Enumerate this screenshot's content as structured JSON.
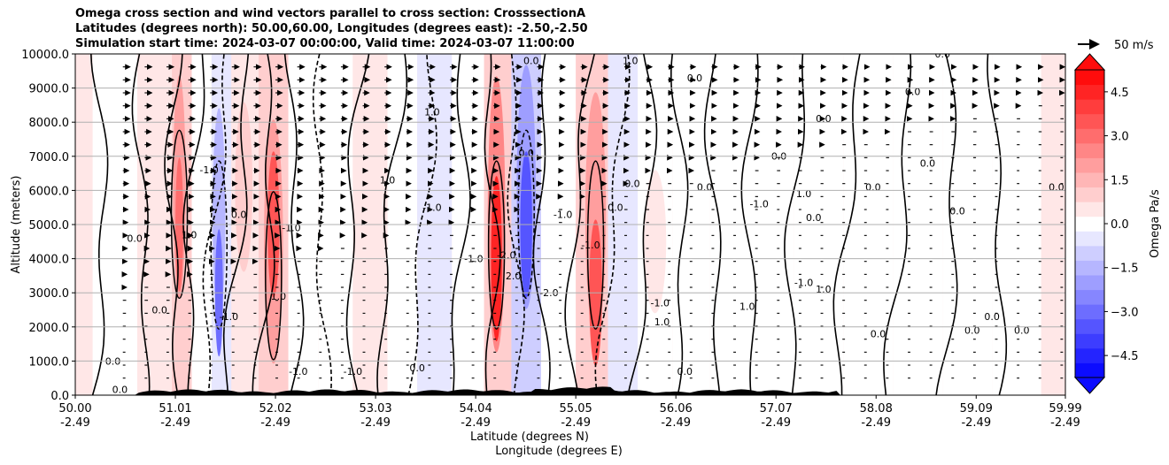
{
  "header": {
    "line1": "Omega cross section and wind vectors parallel to cross section: CrosssectionA",
    "line2": "Latitudes (degrees north): 50.00,60.00, Longitudes (degrees east): -2.50,-2.50",
    "line3": "Simulation start time: 2024-03-07 00:00:00, Valid time: 2024-03-07 11:00:00"
  },
  "chart_data": {
    "type": "contour",
    "title": "Omega cross section and wind vectors parallel to cross section: CrosssectionA",
    "ylabel": "Altitude (meters)",
    "xlabel_lat": "Latitude (degrees N)",
    "xlabel_lon": "Longitude (degrees E)",
    "ylim": [
      0,
      10000
    ],
    "xlim": [
      50.0,
      59.99
    ],
    "yticks": [
      "0.0",
      "1000.0",
      "2000.0",
      "3000.0",
      "4000.0",
      "5000.0",
      "6000.0",
      "7000.0",
      "8000.0",
      "9000.0",
      "10000.0"
    ],
    "ytick_values": [
      0,
      1000,
      2000,
      3000,
      4000,
      5000,
      6000,
      7000,
      8000,
      9000,
      10000
    ],
    "xtick_values": [
      50.0,
      51.01,
      52.02,
      53.03,
      54.04,
      55.05,
      56.06,
      57.07,
      58.08,
      59.09,
      59.99
    ],
    "xticks_lat": [
      "50.00",
      "51.01",
      "52.02",
      "53.03",
      "54.04",
      "55.05",
      "56.06",
      "57.07",
      "58.08",
      "59.09",
      "59.99"
    ],
    "xticks_lon": [
      "-2.49",
      "-2.49",
      "-2.49",
      "-2.49",
      "-2.49",
      "-2.49",
      "-2.49",
      "-2.49",
      "-2.49",
      "-2.49",
      "-2.49"
    ],
    "colorbar": {
      "label": "Omega Pa/s",
      "ticks": [
        "4.5",
        "3.0",
        "1.5",
        "0.0",
        "−1.5",
        "−3.0",
        "−4.5"
      ],
      "tick_values": [
        4.5,
        3.0,
        1.5,
        0.0,
        -1.5,
        -3.0,
        -4.5
      ],
      "range": [
        -5.25,
        5.25
      ],
      "levels": 21,
      "colormap": "bwr",
      "extend": "both"
    },
    "vector_key": {
      "label": "50 m/s",
      "value": 50
    },
    "contour_levels": [
      -2.0,
      -1.0,
      0.0,
      1.0,
      2.0
    ],
    "omega_bands": [
      {
        "lat": 50.35,
        "value": 0.3
      },
      {
        "lat": 50.9,
        "value": 0.8
      },
      {
        "lat": 51.05,
        "value": 2.2
      },
      {
        "lat": 51.3,
        "value": -0.5
      },
      {
        "lat": 51.45,
        "value": -2.0
      },
      {
        "lat": 51.7,
        "value": 1.2
      },
      {
        "lat": 52.0,
        "value": 2.6
      },
      {
        "lat": 52.3,
        "value": 0.6
      },
      {
        "lat": 52.6,
        "value": -0.6
      },
      {
        "lat": 53.0,
        "value": 0.9
      },
      {
        "lat": 53.3,
        "value": 0.5
      },
      {
        "lat": 53.6,
        "value": -0.9
      },
      {
        "lat": 54.0,
        "value": 0.4
      },
      {
        "lat": 54.25,
        "value": 3.2
      },
      {
        "lat": 54.55,
        "value": -2.6
      },
      {
        "lat": 54.85,
        "value": 0.5
      },
      {
        "lat": 55.25,
        "value": 2.6
      },
      {
        "lat": 55.5,
        "value": -0.9
      },
      {
        "lat": 55.85,
        "value": 0.7
      },
      {
        "lat": 56.2,
        "value": 0.3
      },
      {
        "lat": 56.6,
        "value": -0.4
      },
      {
        "lat": 57.0,
        "value": 0.4
      },
      {
        "lat": 57.5,
        "value": 0.6
      },
      {
        "lat": 58.0,
        "value": -0.3
      },
      {
        "lat": 58.5,
        "value": 0.2
      },
      {
        "lat": 59.0,
        "value": -0.3
      },
      {
        "lat": 59.5,
        "value": 0.1
      }
    ],
    "contour_labels": [
      {
        "text": "0.0",
        "lat": 50.38,
        "alt": 900
      },
      {
        "text": "0.0",
        "lat": 50.6,
        "alt": 4500
      },
      {
        "text": "0.0",
        "lat": 50.85,
        "alt": 2400
      },
      {
        "text": "1.0",
        "lat": 51.15,
        "alt": 4600
      },
      {
        "text": "-1.0",
        "lat": 51.35,
        "alt": 6500
      },
      {
        "text": "-1.0",
        "lat": 51.55,
        "alt": 2200
      },
      {
        "text": "0.0",
        "lat": 51.65,
        "alt": 5200
      },
      {
        "text": "1.0",
        "lat": 52.05,
        "alt": 2800
      },
      {
        "text": "-1.0",
        "lat": 52.18,
        "alt": 4800
      },
      {
        "text": "-1.0",
        "lat": 52.25,
        "alt": 600
      },
      {
        "text": "-1.0",
        "lat": 52.8,
        "alt": 600
      },
      {
        "text": "1.0",
        "lat": 53.15,
        "alt": 6200
      },
      {
        "text": "-1.0",
        "lat": 53.6,
        "alt": 5400
      },
      {
        "text": "0.0",
        "lat": 53.45,
        "alt": 700
      },
      {
        "text": "-1.0",
        "lat": 54.02,
        "alt": 3900
      },
      {
        "text": "-2.0",
        "lat": 54.35,
        "alt": 4000
      },
      {
        "text": "2.0",
        "lat": 54.42,
        "alt": 3400
      },
      {
        "text": "0.0",
        "lat": 54.55,
        "alt": 7000
      },
      {
        "text": "-2.0",
        "lat": 54.78,
        "alt": 2900
      },
      {
        "text": "-1.0",
        "lat": 54.92,
        "alt": 5200
      },
      {
        "text": "-1.0",
        "lat": 55.2,
        "alt": 4300
      },
      {
        "text": "0.0",
        "lat": 55.45,
        "alt": 5400
      },
      {
        "text": "0.0",
        "lat": 55.62,
        "alt": 6100
      },
      {
        "text": "-1.0",
        "lat": 55.9,
        "alt": 2600
      },
      {
        "text": "1.0",
        "lat": 55.92,
        "alt": 2050
      },
      {
        "text": "0.0",
        "lat": 56.15,
        "alt": 600
      },
      {
        "text": "0.0",
        "lat": 56.35,
        "alt": 6000
      },
      {
        "text": "1.0",
        "lat": 56.78,
        "alt": 2500
      },
      {
        "text": "-1.0",
        "lat": 56.9,
        "alt": 5500
      },
      {
        "text": "0.0",
        "lat": 57.1,
        "alt": 6900
      },
      {
        "text": "1.0",
        "lat": 57.35,
        "alt": 5800
      },
      {
        "text": "0.0",
        "lat": 57.45,
        "alt": 5100
      },
      {
        "text": "-1.0",
        "lat": 57.35,
        "alt": 3200
      },
      {
        "text": "1.0",
        "lat": 57.55,
        "alt": 3000
      },
      {
        "text": "0.0",
        "lat": 58.1,
        "alt": 1700
      },
      {
        "text": "0.0",
        "lat": 58.05,
        "alt": 6000
      },
      {
        "text": "0.0",
        "lat": 58.6,
        "alt": 6700
      },
      {
        "text": "0.0",
        "lat": 58.9,
        "alt": 5300
      },
      {
        "text": "0.0",
        "lat": 59.25,
        "alt": 2200
      },
      {
        "text": "0.0",
        "lat": 59.05,
        "alt": 1800
      },
      {
        "text": "0.0",
        "lat": 59.55,
        "alt": 1800
      },
      {
        "text": "0.0",
        "lat": 59.9,
        "alt": 6000
      },
      {
        "text": "0.0",
        "lat": 58.75,
        "alt": 9900
      },
      {
        "text": "0.0",
        "lat": 57.55,
        "alt": 8000
      },
      {
        "text": "0.0",
        "lat": 58.45,
        "alt": 8800
      },
      {
        "text": "0.0",
        "lat": 56.25,
        "alt": 9200
      },
      {
        "text": "0.0",
        "lat": 54.6,
        "alt": 9700
      },
      {
        "text": "1.0",
        "lat": 55.6,
        "alt": 9700
      },
      {
        "text": "1.0",
        "lat": 53.6,
        "alt": 8200
      },
      {
        "text": "0.0",
        "lat": 50.45,
        "alt": 60
      }
    ]
  }
}
